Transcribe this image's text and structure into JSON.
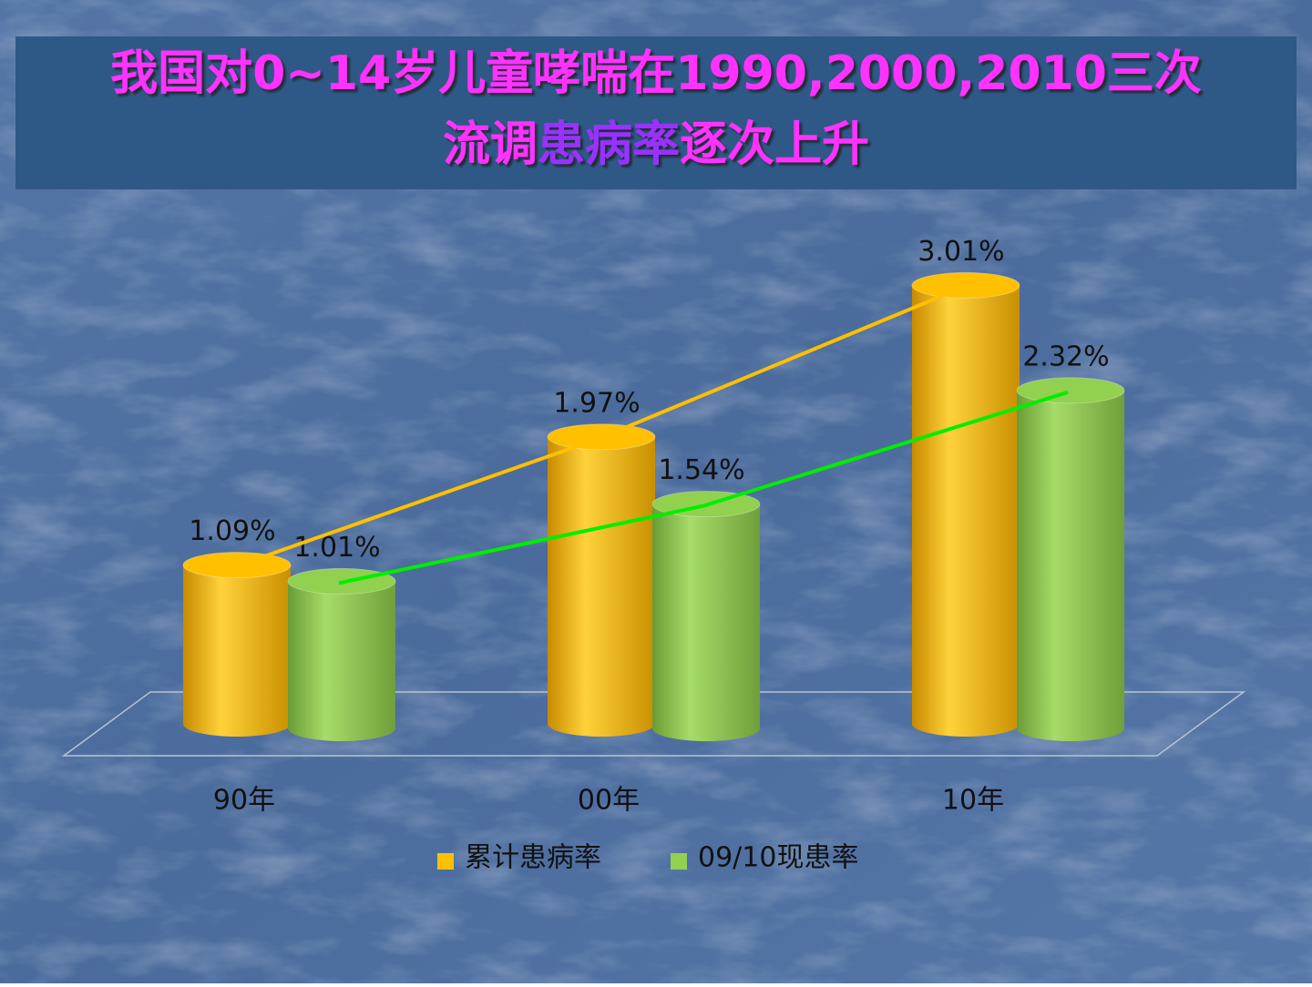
{
  "chart_data": {
    "type": "cylinder-bar",
    "title_parts": [
      "我国对0~14岁儿童哮喘在1990,2000,2010三次",
      "流调",
      "患病率",
      "逐次上升"
    ],
    "categories": [
      "90年",
      "00年",
      "10年"
    ],
    "series": [
      {
        "name": "累计患病率",
        "color": "#ffc000",
        "line_color": "#ffc000",
        "values": [
          1.09,
          1.97,
          3.01
        ],
        "value_labels": [
          "1.09%",
          "1.97%",
          "3.01%"
        ]
      },
      {
        "name": "09/10现患率",
        "color": "#92d050",
        "line_color": "#00ee00",
        "values": [
          1.01,
          1.54,
          2.32
        ],
        "value_labels": [
          "1.01%",
          "1.54%",
          "2.32%"
        ]
      }
    ],
    "legend": "bottom"
  }
}
